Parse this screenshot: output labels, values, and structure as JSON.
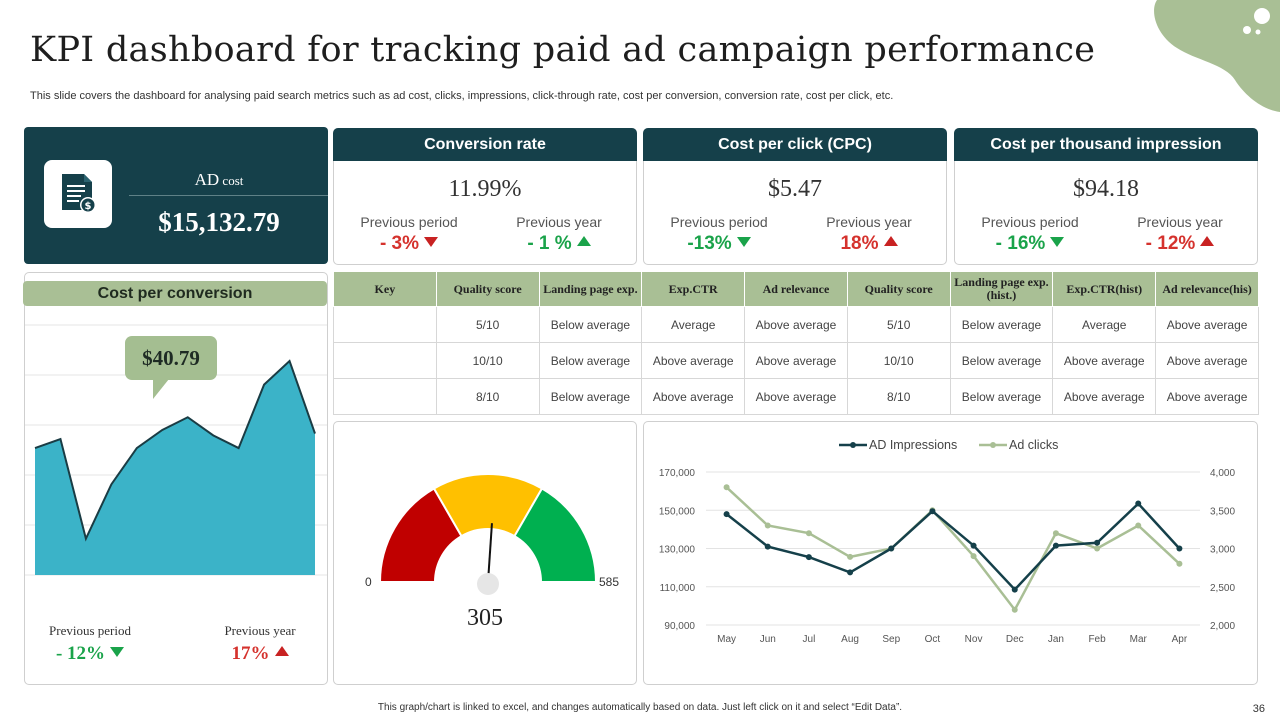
{
  "title": "KPI dashboard for tracking paid ad campaign performance",
  "subtitle": "This slide covers the dashboard for analysing paid search metrics such as ad cost, clicks, impressions, click-through rate, cost per conversion, conversion rate, cost per click, etc.",
  "ad_cost": {
    "label_main": "AD",
    "label_small": " cost",
    "value": "$15,132.79",
    "icon": "invoice-dollar-icon"
  },
  "kpis": [
    {
      "title": "Conversion rate",
      "value": "11.99%",
      "period_label": "Previous period",
      "period_value": "- 3%",
      "period_dir": "down",
      "period_color": "red",
      "year_label": "Previous year",
      "year_value": "- 1 %",
      "year_dir": "up",
      "year_color": "green"
    },
    {
      "title": "Cost per click (CPC)",
      "value": "$5.47",
      "period_label": "Previous period",
      "period_value": "-13%",
      "period_dir": "down",
      "period_color": "green",
      "year_label": "Previous year",
      "year_value": "18%",
      "year_dir": "up",
      "year_color": "red"
    },
    {
      "title": "Cost per thousand impression",
      "value": "$94.18",
      "period_label": "Previous period",
      "period_value": "- 16%",
      "period_dir": "down",
      "period_color": "green",
      "year_label": "Previous year",
      "year_value": "- 12%",
      "year_dir": "up",
      "year_color": "red"
    }
  ],
  "cost_per_conversion": {
    "title": "Cost per conversion",
    "value": "$40.79",
    "period_label": "Previous period",
    "period_value": "- 12%",
    "period_color": "green",
    "year_label": "Previous year",
    "year_value": "17%",
    "year_color": "red"
  },
  "quality_table": {
    "headers": [
      "Key",
      "Quality score",
      "Landing page exp.",
      "Exp.CTR",
      "Ad relevance",
      "Quality score",
      "Landing page exp.(hist.)",
      "Exp.CTR(hist)",
      "Ad relevance(his)"
    ],
    "rows": [
      [
        "",
        "5/10",
        "Below average",
        "Average",
        "Above average",
        "5/10",
        "Below average",
        "Average",
        "Above average"
      ],
      [
        "",
        "10/10",
        "Below average",
        "Above average",
        "Above average",
        "10/10",
        "Below average",
        "Above average",
        "Above average"
      ],
      [
        "",
        "8/10",
        "Below average",
        "Above average",
        "Above average",
        "8/10",
        "Below average",
        "Above average",
        "Above average"
      ]
    ]
  },
  "gauge": {
    "min": "0",
    "max": "585",
    "value": "305"
  },
  "colors": {
    "dark_teal": "#15404a",
    "sage": "#a9bf95",
    "area": "#3bb3c8",
    "red": "#c00000",
    "yellow": "#ffc000",
    "green": "#00b050"
  },
  "footnote": "This graph/chart is linked to excel, and changes automatically based on data. Just left click on it and select “Edit Data”.",
  "page_number": "36",
  "chart_data": [
    {
      "type": "area",
      "title": "Cost per conversion",
      "values": [
        70,
        75,
        20,
        50,
        70,
        80,
        87,
        77,
        70,
        105,
        118,
        78
      ],
      "ylim": [
        0,
        150
      ]
    },
    {
      "type": "gauge",
      "min": 0,
      "max": 585,
      "value": 305,
      "bands": [
        "red",
        "yellow",
        "green"
      ]
    },
    {
      "type": "line",
      "categories": [
        "May",
        "Jun",
        "Jul",
        "Aug",
        "Sep",
        "Oct",
        "Nov",
        "Dec",
        "Jan",
        "Feb",
        "Mar",
        "Apr"
      ],
      "series": [
        {
          "name": "AD Impressions",
          "axis": "left",
          "color": "#15404a",
          "values": [
            148000,
            131000,
            125500,
            117500,
            130000,
            149500,
            131500,
            108500,
            131500,
            133000,
            153500,
            130000
          ]
        },
        {
          "name": "Ad clicks",
          "axis": "right",
          "color": "#a9bf95",
          "values": [
            3800,
            3300,
            3200,
            2890,
            3000,
            3500,
            2900,
            2200,
            3200,
            3000,
            3300,
            2800
          ]
        }
      ],
      "left_axis": {
        "ylim": [
          90000,
          170000
        ],
        "ticks": [
          "90,000",
          "110,000",
          "130,000",
          "150,000",
          "170,000"
        ]
      },
      "right_axis": {
        "ylim": [
          2000,
          4000
        ],
        "ticks": [
          "2,000",
          "2,500",
          "3,000",
          "3,500",
          "4,000"
        ]
      }
    }
  ]
}
